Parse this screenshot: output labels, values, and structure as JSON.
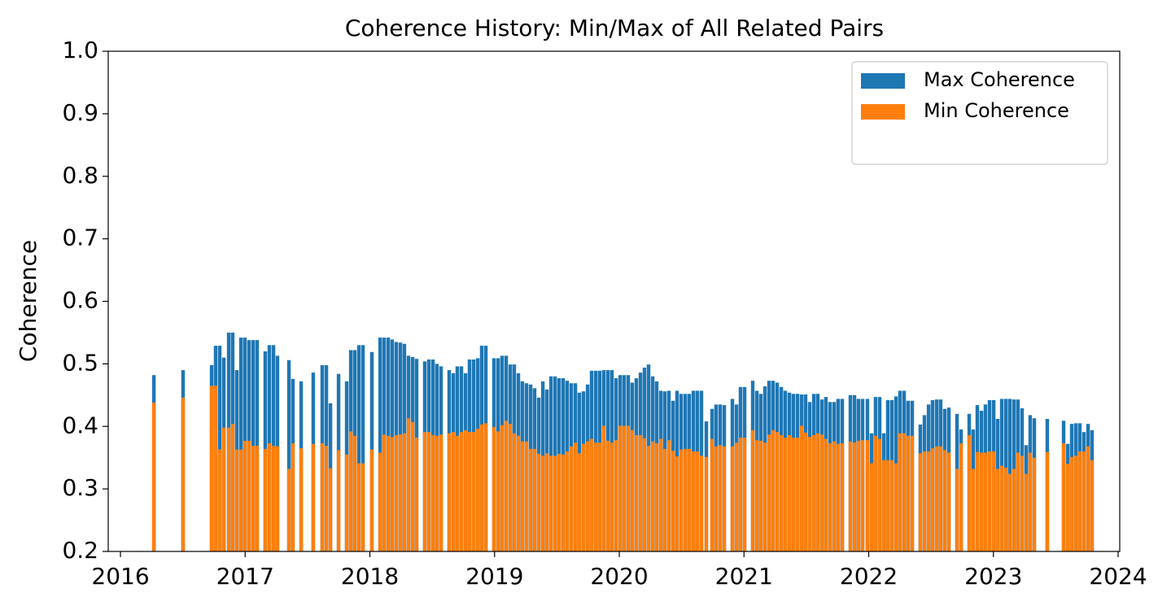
{
  "chart_data": {
    "type": "bar",
    "title": "Coherence History: Min/Max of All Related Pairs",
    "ylabel": "Coherence",
    "xlim": [
      2015.902,
      2024.013
    ],
    "xticks": [
      2016,
      2017,
      2018,
      2019,
      2020,
      2021,
      2022,
      2023,
      2024
    ],
    "ylim": [
      0.2,
      1.0
    ],
    "yticks": [
      0.2,
      0.3,
      0.4,
      0.5,
      0.6,
      0.7,
      0.8,
      0.9,
      {
        "value": 1.0,
        "label": "1.0"
      }
    ],
    "grid": false,
    "legend": "upper right",
    "x": [
      2016.268,
      2016.502,
      2016.731,
      2016.763,
      2016.796,
      2016.829,
      2016.868,
      2016.9,
      2016.933,
      2016.966,
      2016.998,
      2017.031,
      2017.064,
      2017.096,
      2017.161,
      2017.194,
      2017.227,
      2017.259,
      2017.351,
      2017.383,
      2017.449,
      2017.546,
      2017.618,
      2017.651,
      2017.684,
      2017.749,
      2017.814,
      2017.847,
      2017.879,
      2017.912,
      2017.945,
      2018.016,
      2018.082,
      2018.114,
      2018.147,
      2018.179,
      2018.212,
      2018.245,
      2018.277,
      2018.31,
      2018.343,
      2018.375,
      2018.44,
      2018.473,
      2018.506,
      2018.538,
      2018.571,
      2018.636,
      2018.669,
      2018.701,
      2018.734,
      2018.767,
      2018.799,
      2018.832,
      2018.865,
      2018.897,
      2018.93,
      2018.995,
      2019.028,
      2019.06,
      2019.093,
      2019.126,
      2019.158,
      2019.191,
      2019.223,
      2019.256,
      2019.289,
      2019.321,
      2019.354,
      2019.387,
      2019.419,
      2019.452,
      2019.485,
      2019.517,
      2019.55,
      2019.582,
      2019.615,
      2019.648,
      2019.68,
      2019.713,
      2019.746,
      2019.778,
      2019.811,
      2019.843,
      2019.876,
      2019.909,
      2019.941,
      2019.974,
      2020.007,
      2020.039,
      2020.072,
      2020.104,
      2020.137,
      2020.17,
      2020.202,
      2020.235,
      2020.268,
      2020.3,
      2020.333,
      2020.365,
      2020.398,
      2020.431,
      2020.463,
      2020.496,
      2020.529,
      2020.561,
      2020.594,
      2020.626,
      2020.659,
      2020.698,
      2020.744,
      2020.776,
      2020.809,
      2020.842,
      2020.907,
      2020.94,
      2020.972,
      2021.005,
      2021.07,
      2021.103,
      2021.135,
      2021.168,
      2021.201,
      2021.233,
      2021.266,
      2021.299,
      2021.331,
      2021.364,
      2021.396,
      2021.429,
      2021.462,
      2021.494,
      2021.527,
      2021.56,
      2021.592,
      2021.625,
      2021.657,
      2021.69,
      2021.723,
      2021.755,
      2021.788,
      2021.853,
      2021.886,
      2021.918,
      2021.951,
      2021.99,
      2022.023,
      2022.055,
      2022.088,
      2022.121,
      2022.153,
      2022.186,
      2022.219,
      2022.251,
      2022.284,
      2022.316,
      2022.349,
      2022.414,
      2022.447,
      2022.48,
      2022.512,
      2022.545,
      2022.577,
      2022.61,
      2022.643,
      2022.708,
      2022.741,
      2022.806,
      2022.838,
      2022.871,
      2022.904,
      2022.936,
      2022.969,
      2023.002,
      2023.034,
      2023.067,
      2023.1,
      2023.132,
      2023.165,
      2023.197,
      2023.23,
      2023.263,
      2023.295,
      2023.328,
      2023.432,
      2023.563,
      2023.596,
      2023.628,
      2023.661,
      2023.693,
      2023.726,
      2023.759,
      2023.791
    ],
    "series": [
      {
        "name": "Max Coherence",
        "color": "#1f77b4",
        "values": [
          0.482,
          0.49,
          0.498,
          0.529,
          0.529,
          0.51,
          0.55,
          0.55,
          0.49,
          0.542,
          0.542,
          0.538,
          0.538,
          0.538,
          0.52,
          0.53,
          0.53,
          0.513,
          0.506,
          0.476,
          0.472,
          0.486,
          0.498,
          0.498,
          0.437,
          0.484,
          0.472,
          0.522,
          0.522,
          0.53,
          0.53,
          0.519,
          0.542,
          0.542,
          0.542,
          0.539,
          0.535,
          0.534,
          0.532,
          0.513,
          0.511,
          0.508,
          0.504,
          0.507,
          0.507,
          0.5,
          0.496,
          0.49,
          0.485,
          0.496,
          0.496,
          0.485,
          0.507,
          0.507,
          0.509,
          0.529,
          0.529,
          0.509,
          0.509,
          0.513,
          0.513,
          0.499,
          0.499,
          0.485,
          0.472,
          0.469,
          0.467,
          0.461,
          0.446,
          0.472,
          0.459,
          0.48,
          0.48,
          0.477,
          0.477,
          0.473,
          0.469,
          0.469,
          0.454,
          0.456,
          0.467,
          0.489,
          0.489,
          0.489,
          0.49,
          0.49,
          0.49,
          0.477,
          0.482,
          0.482,
          0.482,
          0.47,
          0.477,
          0.486,
          0.494,
          0.499,
          0.48,
          0.472,
          0.457,
          0.456,
          0.457,
          0.441,
          0.457,
          0.452,
          0.452,
          0.452,
          0.457,
          0.457,
          0.457,
          0.408,
          0.428,
          0.435,
          0.435,
          0.434,
          0.444,
          0.435,
          0.463,
          0.463,
          0.473,
          0.457,
          0.452,
          0.464,
          0.473,
          0.473,
          0.47,
          0.463,
          0.457,
          0.454,
          0.452,
          0.452,
          0.451,
          0.451,
          0.439,
          0.452,
          0.452,
          0.443,
          0.447,
          0.439,
          0.439,
          0.444,
          0.444,
          0.45,
          0.45,
          0.444,
          0.444,
          0.444,
          0.389,
          0.447,
          0.447,
          0.389,
          0.442,
          0.442,
          0.448,
          0.457,
          0.457,
          0.441,
          0.441,
          0.403,
          0.418,
          0.435,
          0.442,
          0.443,
          0.443,
          0.428,
          0.43,
          0.42,
          0.395,
          0.42,
          0.395,
          0.434,
          0.425,
          0.435,
          0.442,
          0.442,
          0.412,
          0.444,
          0.444,
          0.444,
          0.443,
          0.443,
          0.429,
          0.37,
          0.418,
          0.413,
          0.412,
          0.409,
          0.372,
          0.404,
          0.405,
          0.405,
          0.391,
          0.404,
          0.394
        ]
      },
      {
        "name": "Min Coherence",
        "color": "#ff7f0e",
        "values": [
          0.438,
          0.446,
          0.465,
          0.465,
          0.363,
          0.398,
          0.398,
          0.404,
          0.363,
          0.363,
          0.377,
          0.377,
          0.369,
          0.369,
          0.364,
          0.373,
          0.369,
          0.368,
          0.332,
          0.373,
          0.365,
          0.372,
          0.373,
          0.369,
          0.333,
          0.362,
          0.355,
          0.392,
          0.385,
          0.341,
          0.341,
          0.363,
          0.358,
          0.387,
          0.385,
          0.383,
          0.386,
          0.387,
          0.389,
          0.413,
          0.407,
          0.382,
          0.391,
          0.391,
          0.386,
          0.385,
          0.387,
          0.389,
          0.391,
          0.385,
          0.391,
          0.394,
          0.391,
          0.391,
          0.396,
          0.403,
          0.405,
          0.399,
          0.392,
          0.402,
          0.409,
          0.404,
          0.389,
          0.385,
          0.376,
          0.376,
          0.364,
          0.364,
          0.356,
          0.353,
          0.357,
          0.353,
          0.353,
          0.356,
          0.355,
          0.36,
          0.368,
          0.374,
          0.357,
          0.372,
          0.376,
          0.38,
          0.374,
          0.374,
          0.401,
          0.377,
          0.374,
          0.378,
          0.401,
          0.401,
          0.401,
          0.394,
          0.386,
          0.386,
          0.381,
          0.369,
          0.376,
          0.373,
          0.38,
          0.364,
          0.378,
          0.361,
          0.352,
          0.363,
          0.364,
          0.364,
          0.36,
          0.36,
          0.353,
          0.351,
          0.38,
          0.368,
          0.37,
          0.368,
          0.368,
          0.374,
          0.382,
          0.382,
          0.394,
          0.378,
          0.377,
          0.374,
          0.387,
          0.394,
          0.391,
          0.386,
          0.382,
          0.386,
          0.382,
          0.382,
          0.401,
          0.39,
          0.383,
          0.386,
          0.389,
          0.387,
          0.38,
          0.373,
          0.376,
          0.372,
          0.373,
          0.376,
          0.374,
          0.377,
          0.378,
          0.378,
          0.341,
          0.385,
          0.38,
          0.346,
          0.346,
          0.346,
          0.341,
          0.389,
          0.389,
          0.385,
          0.385,
          0.357,
          0.36,
          0.36,
          0.365,
          0.368,
          0.368,
          0.362,
          0.358,
          0.332,
          0.373,
          0.386,
          0.332,
          0.359,
          0.358,
          0.358,
          0.36,
          0.36,
          0.332,
          0.337,
          0.334,
          0.324,
          0.332,
          0.358,
          0.353,
          0.324,
          0.358,
          0.35,
          0.359,
          0.373,
          0.34,
          0.351,
          0.353,
          0.36,
          0.36,
          0.368,
          0.346
        ]
      }
    ]
  }
}
